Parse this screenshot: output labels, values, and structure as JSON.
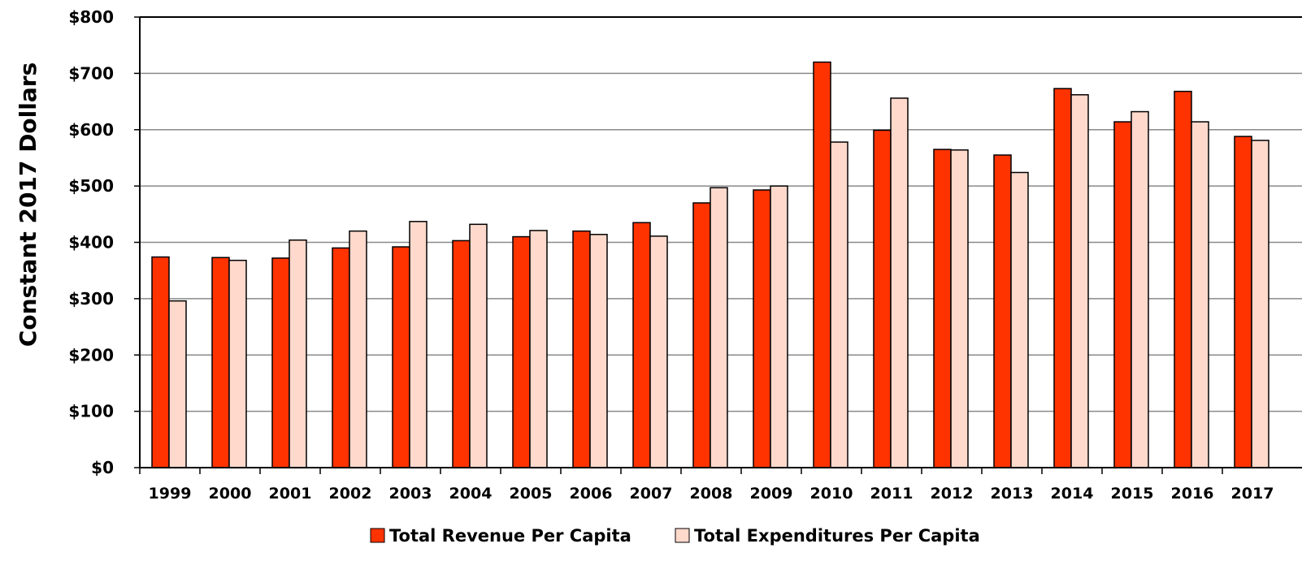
{
  "chart_data": {
    "type": "bar",
    "title": "",
    "xlabel": "",
    "ylabel": "Constant 2017 Dollars",
    "ylim": [
      0,
      800
    ],
    "yticks": [
      0,
      100,
      200,
      300,
      400,
      500,
      600,
      700,
      800
    ],
    "ytick_labels": [
      "$0",
      "$100",
      "$200",
      "$300",
      "$400",
      "$500",
      "$600",
      "$700",
      "$800"
    ],
    "grid": true,
    "legend_position": "bottom",
    "categories": [
      "1999",
      "2000",
      "2001",
      "2002",
      "2003",
      "2004",
      "2005",
      "2006",
      "2007",
      "2008",
      "2009",
      "2010",
      "2011",
      "2012",
      "2013",
      "2014",
      "2015",
      "2016",
      "2017"
    ],
    "series": [
      {
        "name": "Total Revenue Per Capita",
        "color": "#ff3300",
        "values": [
          374,
          373,
          372,
          390,
          392,
          403,
          410,
          420,
          435,
          470,
          493,
          720,
          599,
          565,
          555,
          673,
          614,
          668,
          588
        ]
      },
      {
        "name": "Total Expenditures Per Capita",
        "color": "#ffd9cc",
        "values": [
          296,
          368,
          404,
          420,
          437,
          432,
          421,
          414,
          411,
          497,
          500,
          578,
          656,
          564,
          524,
          662,
          632,
          614,
          581
        ]
      }
    ]
  }
}
